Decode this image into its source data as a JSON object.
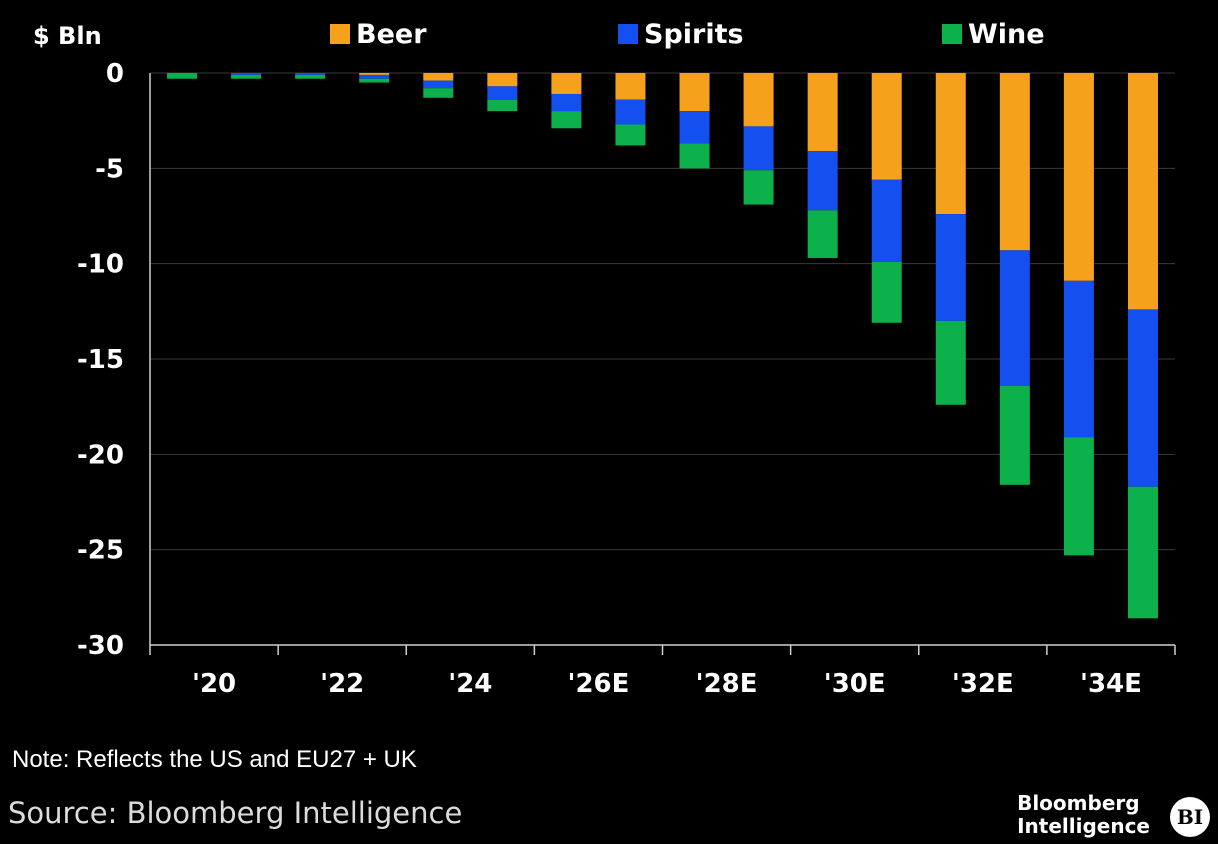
{
  "chart_data": {
    "type": "bar",
    "stacked": true,
    "ylabel": "$ Bln",
    "ylim": [
      -30,
      0
    ],
    "yticks": [
      0,
      -5,
      -10,
      -15,
      -20,
      -25,
      -30
    ],
    "ytick_labels": [
      "0",
      "-5",
      "-10",
      "-15",
      "-20",
      "-25",
      "-30"
    ],
    "categories": [
      "2020",
      "2021",
      "2022",
      "2023",
      "2024",
      "2025",
      "2026E",
      "2027E",
      "2028E",
      "2029E",
      "2030E",
      "2031E",
      "2032E",
      "2033E",
      "2034E",
      "2035E"
    ],
    "xtick_labels": [
      "'20",
      "'22",
      "'24",
      "'26E",
      "'28E",
      "'30E",
      "'32E",
      "'34E"
    ],
    "xtick_categories": [
      "2020",
      "2022",
      "2024",
      "2026E",
      "2028E",
      "2030E",
      "2032E",
      "2034E"
    ],
    "grid": true,
    "legend_position": "top",
    "series": [
      {
        "name": "Beer",
        "color": "#f5a11c",
        "values": [
          0,
          0,
          0,
          -0.1,
          -0.4,
          -0.7,
          -1.1,
          -1.4,
          -2.0,
          -2.8,
          -4.1,
          -5.6,
          -7.4,
          -9.3,
          -10.9,
          -12.4
        ]
      },
      {
        "name": "Spirits",
        "color": "#1450f0",
        "values": [
          0,
          -0.1,
          -0.1,
          -0.2,
          -0.4,
          -0.7,
          -0.9,
          -1.3,
          -1.7,
          -2.3,
          -3.1,
          -4.3,
          -5.6,
          -7.1,
          -8.2,
          -9.3
        ]
      },
      {
        "name": "Wine",
        "color": "#0db14b",
        "values": [
          -0.3,
          -0.2,
          -0.2,
          -0.2,
          -0.5,
          -0.6,
          -0.9,
          -1.1,
          -1.3,
          -1.8,
          -2.5,
          -3.2,
          -4.4,
          -5.2,
          -6.2,
          -6.9
        ]
      }
    ]
  },
  "footer": {
    "note": "Note: Reflects the US and EU27 + UK",
    "source": "Source: Bloomberg Intelligence",
    "brand_line1": "Bloomberg",
    "brand_line2": "Intelligence",
    "brand_badge": "BI"
  }
}
